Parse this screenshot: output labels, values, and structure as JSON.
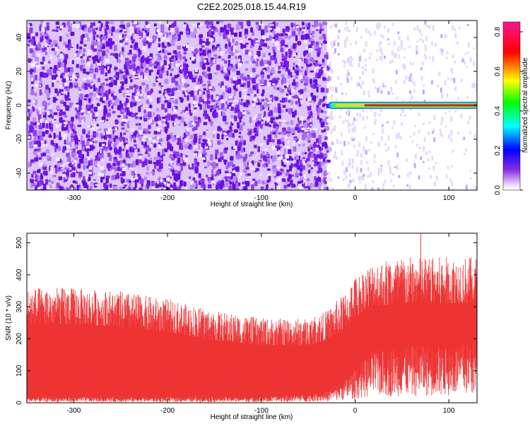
{
  "title": "C2E2.2025.018.15.44.R19",
  "chart_data": [
    {
      "type": "heatmap",
      "xlabel": "Height of straight line (km)",
      "ylabel": "Frequency (Hz)",
      "xlim": [
        -350,
        130
      ],
      "ylim": [
        -50,
        50
      ],
      "xticks": [
        -300,
        -200,
        -100,
        0,
        100
      ],
      "yticks": [
        -40,
        -20,
        0,
        20,
        40
      ],
      "colorbar": {
        "label": "Normalized spectral amplitude",
        "range": [
          0.0,
          0.85
        ],
        "ticks": [
          "0.0",
          "0.2",
          "0.4",
          "0.6",
          "0.8"
        ]
      },
      "features": [
        {
          "region": "x < -30 km",
          "description": "broadband noise",
          "amplitude": 0.05
        },
        {
          "region": "x >= -30 km",
          "description": "narrowband line at 0 Hz",
          "frequency_hz": 0,
          "amplitude": 0.85
        }
      ]
    },
    {
      "type": "area",
      "xlabel": "Height of straight line (km)",
      "ylabel": "SNR (10 * v/v)",
      "xlim": [
        -350,
        130
      ],
      "ylim": [
        0,
        530
      ],
      "xticks": [
        -300,
        -200,
        -100,
        0,
        100
      ],
      "yticks": [
        0,
        100,
        200,
        300,
        400,
        500
      ],
      "color": "#ee3333",
      "envelope": {
        "x": [
          -350,
          -300,
          -250,
          -200,
          -150,
          -100,
          -50,
          -30,
          -10,
          0,
          20,
          50,
          100,
          130
        ],
        "upper": [
          300,
          300,
          290,
          270,
          240,
          220,
          220,
          240,
          290,
          330,
          370,
          380,
          380,
          380
        ],
        "lower": [
          10,
          10,
          10,
          10,
          10,
          10,
          15,
          20,
          40,
          60,
          90,
          100,
          100,
          110
        ]
      },
      "peak": {
        "x": 70,
        "y": 530
      }
    }
  ]
}
